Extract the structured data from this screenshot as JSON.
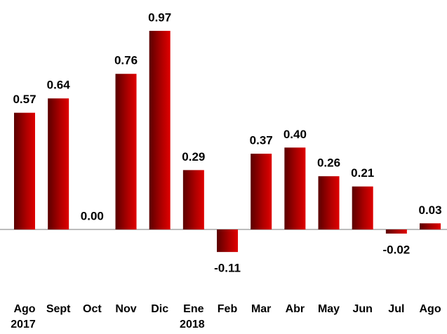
{
  "chart_data": {
    "type": "bar",
    "categories": [
      "Ago",
      "Sept",
      "Oct",
      "Nov",
      "Dic",
      "Ene",
      "Feb",
      "Mar",
      "Abr",
      "May",
      "Jun",
      "Jul",
      "Ago"
    ],
    "category_years": [
      "2017",
      null,
      null,
      null,
      null,
      "2018",
      null,
      null,
      null,
      null,
      null,
      null,
      null
    ],
    "values": [
      0.57,
      0.64,
      0.0,
      0.76,
      0.97,
      0.29,
      -0.11,
      0.37,
      0.4,
      0.26,
      0.21,
      -0.02,
      0.03
    ],
    "value_labels": [
      "0.57",
      "0.64",
      "0.00",
      "0.76",
      "0.97",
      "0.29",
      "-0.11",
      "0.37",
      "0.40",
      "0.26",
      "0.21",
      "-0.02",
      "0.03"
    ],
    "color": "#c00000",
    "ylim": [
      -0.2,
      1.0
    ]
  }
}
